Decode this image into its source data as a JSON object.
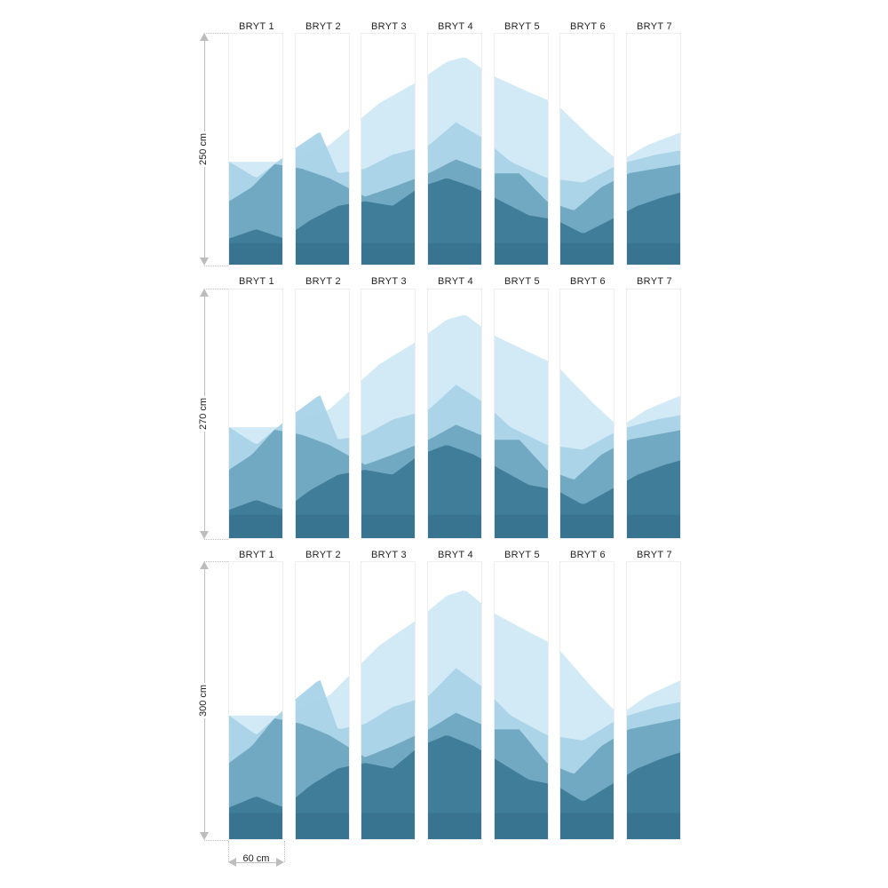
{
  "panel_labels": [
    "BRYT 1",
    "BRYT 2",
    "BRYT 3",
    "BRYT 4",
    "BRYT 5",
    "BRYT 6",
    "BRYT 7"
  ],
  "rows": [
    {
      "height_label": "250 cm"
    },
    {
      "height_label": "270 cm"
    },
    {
      "height_label": "300 cm"
    }
  ],
  "width_label": "60 cm",
  "colors": {
    "sky_light": "#cfe9f6",
    "mist": "#a9d3e8",
    "mid_blue": "#6fa7c0",
    "deep_blue": "#3d7a97",
    "dark_teal": "#1f5a78",
    "dim_gray": "#bdbdbd"
  }
}
